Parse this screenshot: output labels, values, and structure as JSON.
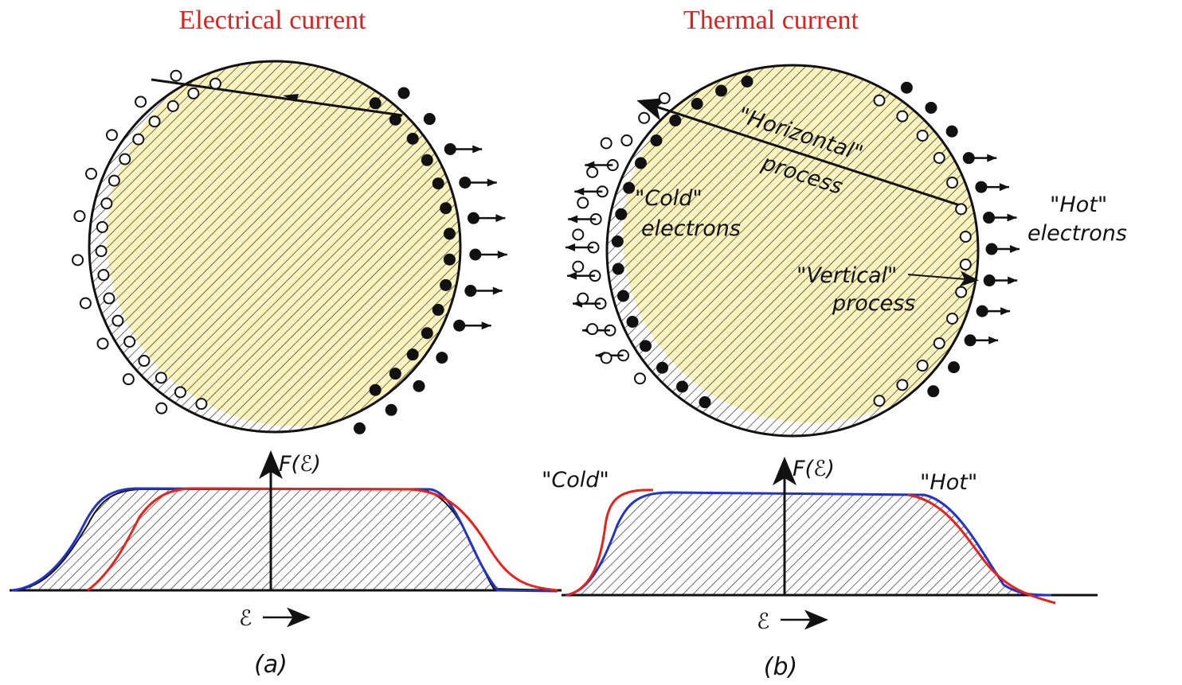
{
  "panels": [
    {
      "title": "Electrical current",
      "axis_label": "F(ℰ)",
      "energy_label": "ℰ",
      "caption": "(a)"
    },
    {
      "title": "Thermal current",
      "annotations": [
        "\"Horizontal\"",
        "process",
        "\"Cold\"",
        "electrons",
        "\"Hot\"",
        "electrons",
        "\"Vertical\"",
        "process"
      ],
      "curve_labels": [
        "\"Cold\"",
        "\"Hot\""
      ],
      "axis_label": "F(ℰ)",
      "energy_label": "ℰ",
      "caption": "(b)"
    }
  ]
}
